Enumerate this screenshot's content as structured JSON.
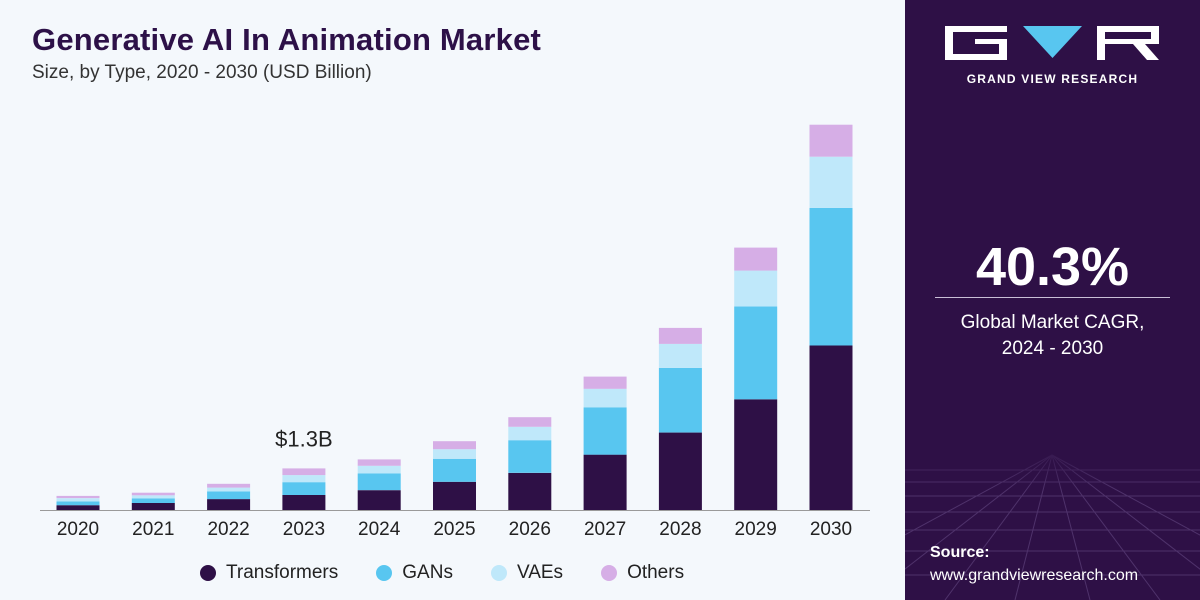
{
  "title": "Generative AI In Animation Market",
  "subtitle": "Size, by Type, 2020 - 2030 (USD Billion)",
  "colors": {
    "Transformers": "#2e1046",
    "GANs": "#58c6f0",
    "VAEs": "#bfe8fa",
    "Others": "#d6aee6"
  },
  "chart_data": {
    "type": "bar",
    "stacked": true,
    "categories": [
      "2020",
      "2021",
      "2022",
      "2023",
      "2024",
      "2025",
      "2026",
      "2027",
      "2028",
      "2029",
      "2030"
    ],
    "series": [
      {
        "name": "Transformers",
        "values": [
          0.15,
          0.22,
          0.34,
          0.47,
          0.62,
          0.88,
          1.16,
          1.73,
          2.42,
          3.46,
          5.14
        ]
      },
      {
        "name": "GANs",
        "values": [
          0.12,
          0.14,
          0.24,
          0.4,
          0.52,
          0.72,
          1.02,
          1.48,
          2.02,
          2.9,
          4.3
        ]
      },
      {
        "name": "VAEs",
        "values": [
          0.1,
          0.1,
          0.12,
          0.22,
          0.24,
          0.3,
          0.42,
          0.58,
          0.75,
          1.12,
          1.6
        ]
      },
      {
        "name": "Others",
        "values": [
          0.07,
          0.08,
          0.12,
          0.21,
          0.2,
          0.25,
          0.3,
          0.38,
          0.5,
          0.72,
          1.0
        ]
      }
    ],
    "ylim": [
      0,
      12.5
    ],
    "annotations": [
      {
        "category": "2023",
        "label": "$1.3B"
      }
    ],
    "legend": "bottom"
  },
  "legend_items": [
    "Transformers",
    "GANs",
    "VAEs",
    "Others"
  ],
  "brand": {
    "name": "GRAND VIEW RESEARCH"
  },
  "cagr": {
    "value": "40.3%",
    "line1": "Global Market CAGR,",
    "line2": "2024 - 2030"
  },
  "source": {
    "label": "Source:",
    "url": "www.grandviewresearch.com"
  }
}
